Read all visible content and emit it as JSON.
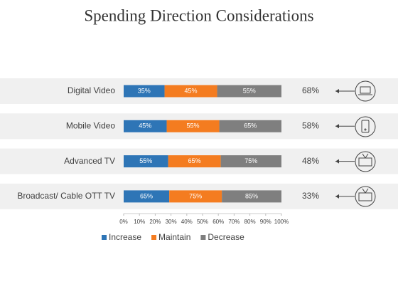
{
  "chart_data": {
    "type": "bar",
    "orientation": "horizontal",
    "stacking": "percent",
    "title": "Spending Direction Considerations",
    "categories": [
      "Digital Video",
      "Mobile Video",
      "Advanced TV",
      "Broadcast/  Cable OTT TV"
    ],
    "series": [
      {
        "name": "Increase",
        "color": "#2e75b6",
        "values": [
          35,
          45,
          55,
          65
        ],
        "value_labels": [
          "35%",
          "45%",
          "55%",
          "65%"
        ]
      },
      {
        "name": "Maintain",
        "color": "#f47c20",
        "values": [
          45,
          55,
          65,
          75
        ],
        "value_labels": [
          "45%",
          "55%",
          "65%",
          "75%"
        ]
      },
      {
        "name": "Decrease",
        "color": "#7f7f7f",
        "values": [
          55,
          65,
          75,
          85
        ],
        "value_labels": [
          "55%",
          "65%",
          "75%",
          "85%"
        ]
      }
    ],
    "xlim": [
      0,
      100
    ],
    "xticks": [
      {
        "value": 0,
        "label": "0%"
      },
      {
        "value": 10,
        "label": "10%"
      },
      {
        "value": 20,
        "label": "20%"
      },
      {
        "value": 30,
        "label": "30%"
      },
      {
        "value": 40,
        "label": "40%"
      },
      {
        "value": 50,
        "label": "50%"
      },
      {
        "value": 60,
        "label": "60%"
      },
      {
        "value": 70,
        "label": "70%"
      },
      {
        "value": 80,
        "label": "80%"
      },
      {
        "value": 90,
        "label": "90%"
      },
      {
        "value": 100,
        "label": "100%"
      }
    ],
    "side_labels": [
      "68%",
      "58%",
      "48%",
      "33%"
    ],
    "legend": "bottom"
  }
}
